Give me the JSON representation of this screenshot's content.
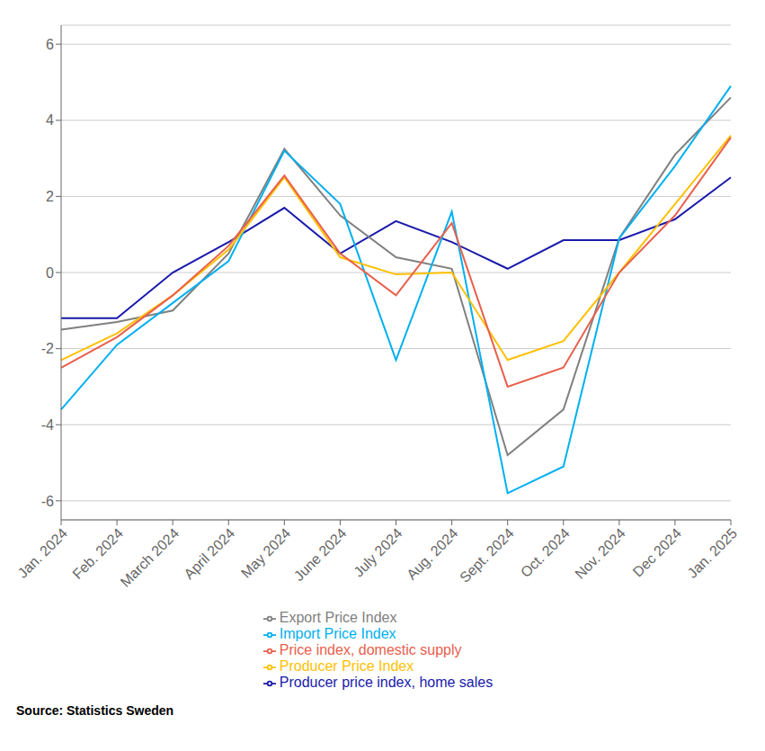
{
  "chart_data": {
    "type": "line",
    "categories": [
      "Jan. 2024",
      "Feb. 2024",
      "March 2024",
      "April 2024",
      "May 2024",
      "June 2024",
      "July 2024",
      "Aug. 2024",
      "Sept. 2024",
      "Oct. 2024",
      "Nov. 2024",
      "Dec 2024",
      "Jan. 2025"
    ],
    "series": [
      {
        "name": "Producer price index, home sales",
        "color": "#1a1aab",
        "values": [
          -1.2,
          -1.2,
          0.0,
          0.8,
          1.7,
          0.5,
          1.35,
          0.8,
          0.1,
          0.85,
          0.85,
          1.4,
          2.5
        ]
      },
      {
        "name": "Export Price Index",
        "color": "#808080",
        "values": [
          -1.5,
          -1.3,
          -1.0,
          0.5,
          3.25,
          1.5,
          0.4,
          0.1,
          -4.8,
          -3.6,
          0.9,
          3.1,
          4.6
        ]
      },
      {
        "name": "Import Price Index",
        "color": "#00b0f0",
        "values": [
          -3.6,
          -1.9,
          -0.8,
          0.3,
          3.2,
          1.8,
          -2.3,
          1.6,
          -5.8,
          -5.1,
          0.9,
          2.8,
          4.9
        ]
      },
      {
        "name": "Producer Price Index",
        "color": "#ffc000",
        "values": [
          -2.3,
          -1.6,
          -0.6,
          0.6,
          2.5,
          0.4,
          -0.05,
          0.0,
          -2.3,
          -1.8,
          0.0,
          1.8,
          3.6
        ]
      },
      {
        "name": "Price index, domestic supply",
        "color": "#e8604c",
        "values": [
          -2.5,
          -1.7,
          -0.6,
          0.7,
          2.55,
          0.5,
          -0.6,
          1.3,
          -3.0,
          -2.5,
          0.0,
          1.5,
          3.55
        ]
      }
    ],
    "ylim": [
      -6.5,
      6.5
    ],
    "yticks": [
      -6,
      -4,
      -2,
      0,
      2,
      4,
      6
    ],
    "grid": true,
    "legend": "bottom",
    "annotations": [
      "Source: Statistics Sweden"
    ]
  }
}
